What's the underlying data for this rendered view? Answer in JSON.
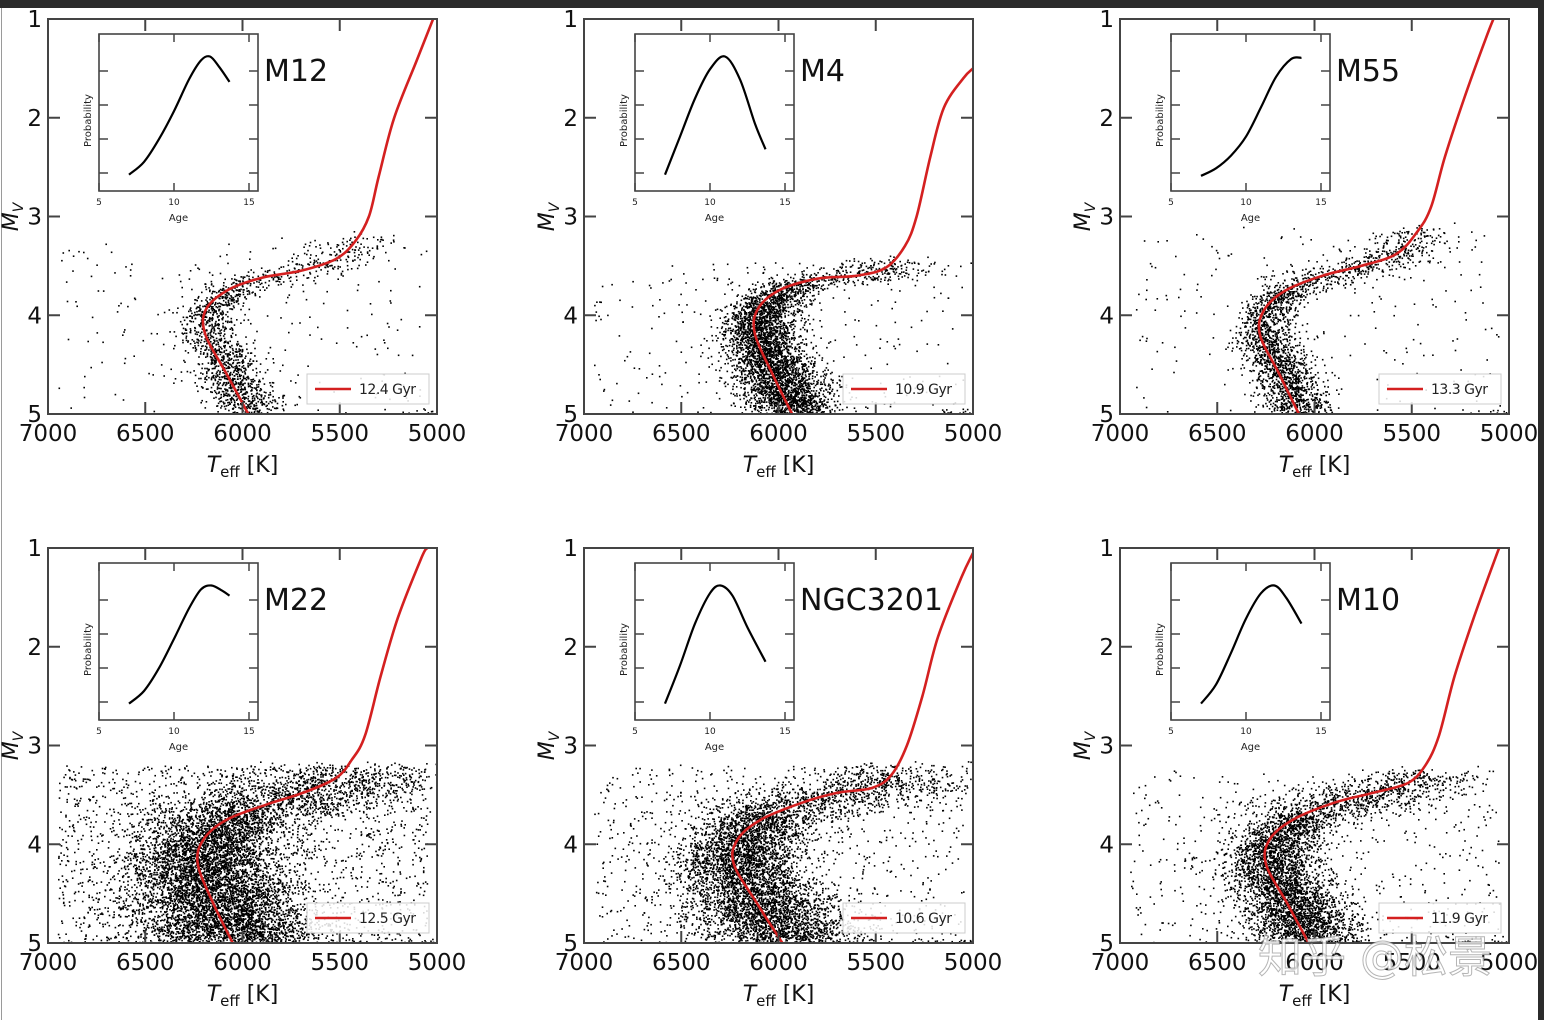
{
  "figure": {
    "watermark": "知乎 @松景",
    "colors": {
      "isochrone": "#d42020",
      "stars": "#000000",
      "frame": "#444444",
      "background": "#ffffff"
    }
  },
  "chart_data": [
    {
      "type": "scatter",
      "title": "M12",
      "xlabel": "T_eff [K]",
      "ylabel": "M_V",
      "xlim": [
        7000,
        5000
      ],
      "ylim": [
        5,
        1
      ],
      "xticks": [
        "7000",
        "6500",
        "6000",
        "5500",
        "5000"
      ],
      "yticks": [
        "1",
        "2",
        "3",
        "4",
        "5"
      ],
      "legend": {
        "label": "12.4 Gyr",
        "position": "bottom-right"
      },
      "isochrone": {
        "age_gyr": 12.4,
        "turnoff_teff": 6200,
        "subgiant_mv": 3.5,
        "points": [
          [
            5970,
            5.0
          ],
          [
            6080,
            4.6
          ],
          [
            6190,
            4.2
          ],
          [
            6190,
            3.95
          ],
          [
            6080,
            3.75
          ],
          [
            5900,
            3.62
          ],
          [
            5700,
            3.55
          ],
          [
            5520,
            3.43
          ],
          [
            5420,
            3.25
          ],
          [
            5350,
            3.0
          ],
          [
            5300,
            2.6
          ],
          [
            5220,
            2.0
          ],
          [
            5100,
            1.4
          ],
          [
            5020,
            1.0
          ]
        ]
      },
      "stars": {
        "approx_count": 1800,
        "mv_cut_bright": 3.2,
        "spread_k": 90,
        "field_fraction": 0.12
      },
      "inset": {
        "xlabel": "Age",
        "ylabel": "Probability",
        "xlim": [
          5,
          15.6
        ],
        "xticks": [
          "5",
          "10",
          "15"
        ],
        "curve": [
          [
            7,
            0.05
          ],
          [
            8,
            0.15
          ],
          [
            9,
            0.33
          ],
          [
            10,
            0.55
          ],
          [
            11,
            0.8
          ],
          [
            11.8,
            0.95
          ],
          [
            12.4,
            0.98
          ],
          [
            13,
            0.9
          ],
          [
            13.7,
            0.78
          ]
        ]
      }
    },
    {
      "type": "scatter",
      "title": "M4",
      "xlabel": "T_eff [K]",
      "ylabel": "M_V",
      "xlim": [
        7000,
        5000
      ],
      "ylim": [
        5,
        1
      ],
      "xticks": [
        "7000",
        "6500",
        "6000",
        "5500",
        "5000"
      ],
      "yticks": [
        "1",
        "2",
        "3",
        "4",
        "5"
      ],
      "legend": {
        "label": "10.9 Gyr",
        "position": "bottom-right"
      },
      "isochrone": {
        "age_gyr": 10.9,
        "turnoff_teff": 6120,
        "subgiant_mv": 3.58,
        "points": [
          [
            5930,
            5.0
          ],
          [
            6030,
            4.6
          ],
          [
            6120,
            4.2
          ],
          [
            6110,
            3.95
          ],
          [
            6000,
            3.75
          ],
          [
            5800,
            3.63
          ],
          [
            5600,
            3.6
          ],
          [
            5450,
            3.52
          ],
          [
            5350,
            3.3
          ],
          [
            5290,
            3.0
          ],
          [
            5220,
            2.4
          ],
          [
            5150,
            1.9
          ],
          [
            5050,
            1.6
          ],
          [
            5000,
            1.5
          ]
        ]
      },
      "stars": {
        "approx_count": 4500,
        "mv_cut_bright": 3.45,
        "spread_k": 110,
        "field_fraction": 0.06
      },
      "inset": {
        "xlabel": "Age",
        "ylabel": "Probability",
        "xlim": [
          5,
          15.6
        ],
        "xticks": [
          "5",
          "10",
          "15"
        ],
        "curve": [
          [
            7,
            0.05
          ],
          [
            8,
            0.35
          ],
          [
            9,
            0.65
          ],
          [
            10,
            0.88
          ],
          [
            11,
            0.98
          ],
          [
            12,
            0.8
          ],
          [
            13,
            0.45
          ],
          [
            13.7,
            0.25
          ]
        ]
      }
    },
    {
      "type": "scatter",
      "title": "M55",
      "xlabel": "T_eff [K]",
      "ylabel": "M_V",
      "xlim": [
        7000,
        5000
      ],
      "ylim": [
        5,
        1
      ],
      "xticks": [
        "7000",
        "6500",
        "6000",
        "5500",
        "5000"
      ],
      "yticks": [
        "1",
        "2",
        "3",
        "4",
        "5"
      ],
      "legend": {
        "label": "13.3 Gyr",
        "position": "bottom-right"
      },
      "isochrone": {
        "age_gyr": 13.3,
        "turnoff_teff": 6280,
        "subgiant_mv": 3.4,
        "points": [
          [
            6080,
            5.0
          ],
          [
            6180,
            4.6
          ],
          [
            6280,
            4.2
          ],
          [
            6260,
            3.95
          ],
          [
            6150,
            3.75
          ],
          [
            5960,
            3.6
          ],
          [
            5760,
            3.5
          ],
          [
            5580,
            3.38
          ],
          [
            5470,
            3.15
          ],
          [
            5400,
            2.9
          ],
          [
            5330,
            2.4
          ],
          [
            5230,
            1.8
          ],
          [
            5120,
            1.2
          ],
          [
            5080,
            1.0
          ]
        ]
      },
      "stars": {
        "approx_count": 2500,
        "mv_cut_bright": 3.1,
        "spread_k": 85,
        "field_fraction": 0.08
      },
      "inset": {
        "xlabel": "Age",
        "ylabel": "Probability",
        "xlim": [
          5,
          15.6
        ],
        "xticks": [
          "5",
          "10",
          "15"
        ],
        "curve": [
          [
            7,
            0.04
          ],
          [
            8,
            0.1
          ],
          [
            9,
            0.2
          ],
          [
            10,
            0.35
          ],
          [
            11,
            0.58
          ],
          [
            12,
            0.82
          ],
          [
            13,
            0.96
          ],
          [
            13.7,
            0.97
          ]
        ]
      }
    },
    {
      "type": "scatter",
      "title": "M22",
      "xlabel": "T_eff [K]",
      "ylabel": "M_V",
      "xlim": [
        7000,
        5000
      ],
      "ylim": [
        5,
        1
      ],
      "xticks": [
        "7000",
        "6500",
        "6000",
        "5500",
        "5000"
      ],
      "yticks": [
        "1",
        "2",
        "3",
        "4",
        "5"
      ],
      "legend": {
        "label": "12.5 Gyr",
        "position": "bottom-right"
      },
      "isochrone": {
        "age_gyr": 12.5,
        "turnoff_teff": 6230,
        "subgiant_mv": 3.45,
        "points": [
          [
            6050,
            5.0
          ],
          [
            6150,
            4.6
          ],
          [
            6230,
            4.2
          ],
          [
            6200,
            3.95
          ],
          [
            6080,
            3.75
          ],
          [
            5880,
            3.6
          ],
          [
            5690,
            3.48
          ],
          [
            5520,
            3.33
          ],
          [
            5440,
            3.15
          ],
          [
            5370,
            2.9
          ],
          [
            5290,
            2.3
          ],
          [
            5200,
            1.7
          ],
          [
            5080,
            1.1
          ],
          [
            5050,
            1.0
          ]
        ]
      },
      "stars": {
        "approx_count": 9000,
        "mv_cut_bright": 3.2,
        "spread_k": 230,
        "field_fraction": 0.2
      },
      "inset": {
        "xlabel": "Age",
        "ylabel": "Probability",
        "xlim": [
          5,
          15.6
        ],
        "xticks": [
          "5",
          "10",
          "15"
        ],
        "curve": [
          [
            7,
            0.05
          ],
          [
            8,
            0.15
          ],
          [
            9,
            0.33
          ],
          [
            10,
            0.56
          ],
          [
            11,
            0.8
          ],
          [
            11.8,
            0.95
          ],
          [
            12.5,
            0.98
          ],
          [
            13.2,
            0.94
          ],
          [
            13.7,
            0.9
          ]
        ]
      }
    },
    {
      "type": "scatter",
      "title": "NGC3201",
      "xlabel": "T_eff [K]",
      "ylabel": "M_V",
      "xlim": [
        7000,
        5000
      ],
      "ylim": [
        5,
        1
      ],
      "xticks": [
        "7000",
        "6500",
        "6000",
        "5500",
        "5000"
      ],
      "yticks": [
        "1",
        "2",
        "3",
        "4",
        "5"
      ],
      "legend": {
        "label": "10.6 Gyr",
        "position": "bottom-right"
      },
      "isochrone": {
        "age_gyr": 10.6,
        "turnoff_teff": 6230,
        "subgiant_mv": 3.45,
        "points": [
          [
            5980,
            5.0
          ],
          [
            6110,
            4.6
          ],
          [
            6230,
            4.2
          ],
          [
            6210,
            3.95
          ],
          [
            6090,
            3.75
          ],
          [
            5880,
            3.58
          ],
          [
            5700,
            3.48
          ],
          [
            5520,
            3.43
          ],
          [
            5420,
            3.3
          ],
          [
            5340,
            3.0
          ],
          [
            5260,
            2.5
          ],
          [
            5180,
            1.9
          ],
          [
            5060,
            1.3
          ],
          [
            5000,
            1.05
          ]
        ]
      },
      "stars": {
        "approx_count": 6500,
        "mv_cut_bright": 3.2,
        "spread_k": 190,
        "field_fraction": 0.12
      },
      "inset": {
        "xlabel": "Age",
        "ylabel": "Probability",
        "xlim": [
          5,
          15.6
        ],
        "xticks": [
          "5",
          "10",
          "15"
        ],
        "curve": [
          [
            7,
            0.05
          ],
          [
            8,
            0.35
          ],
          [
            9,
            0.68
          ],
          [
            10,
            0.92
          ],
          [
            10.7,
            0.98
          ],
          [
            11.5,
            0.9
          ],
          [
            12.5,
            0.65
          ],
          [
            13.7,
            0.38
          ]
        ]
      }
    },
    {
      "type": "scatter",
      "title": "M10",
      "xlabel": "T_eff [K]",
      "ylabel": "M_V",
      "xlim": [
        7000,
        5000
      ],
      "ylim": [
        5,
        1
      ],
      "xticks": [
        "7000",
        "6500",
        "6000",
        "5500",
        "5000"
      ],
      "yticks": [
        "1",
        "2",
        "3",
        "4",
        "5"
      ],
      "legend": {
        "label": "11.9 Gyr",
        "position": "bottom-right"
      },
      "isochrone": {
        "age_gyr": 11.9,
        "turnoff_teff": 6250,
        "subgiant_mv": 3.45,
        "points": [
          [
            6030,
            5.0
          ],
          [
            6140,
            4.6
          ],
          [
            6250,
            4.2
          ],
          [
            6230,
            3.95
          ],
          [
            6110,
            3.75
          ],
          [
            5900,
            3.58
          ],
          [
            5700,
            3.48
          ],
          [
            5520,
            3.38
          ],
          [
            5430,
            3.2
          ],
          [
            5360,
            2.9
          ],
          [
            5280,
            2.3
          ],
          [
            5180,
            1.7
          ],
          [
            5070,
            1.1
          ],
          [
            5050,
            1.0
          ]
        ]
      },
      "stars": {
        "approx_count": 5000,
        "mv_cut_bright": 3.25,
        "spread_k": 140,
        "field_fraction": 0.1
      },
      "inset": {
        "xlabel": "Age",
        "ylabel": "Probability",
        "xlim": [
          5,
          15.6
        ],
        "xticks": [
          "5",
          "10",
          "15"
        ],
        "curve": [
          [
            7,
            0.05
          ],
          [
            8,
            0.2
          ],
          [
            9,
            0.45
          ],
          [
            10,
            0.72
          ],
          [
            11,
            0.92
          ],
          [
            11.9,
            0.98
          ],
          [
            12.7,
            0.88
          ],
          [
            13.7,
            0.68
          ]
        ]
      }
    }
  ]
}
